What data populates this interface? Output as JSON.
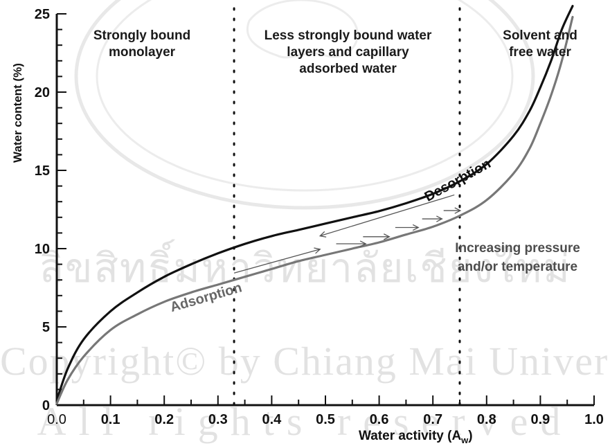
{
  "chart_data": {
    "type": "line",
    "title": "",
    "xlabel": "Water activity (A",
    "xlabel_sub": "w",
    "ylabel": "Water content (%)",
    "xlim": [
      0.0,
      1.0
    ],
    "ylim": [
      0,
      25
    ],
    "x_ticks": [
      "0.0",
      "0.1",
      "0.2",
      "0.3",
      "0.4",
      "0.5",
      "0.6",
      "0.7",
      "0.8",
      "0.9",
      "1.0"
    ],
    "y_ticks": [
      "0",
      "5",
      "10",
      "15",
      "20",
      "25"
    ],
    "region_boundaries": [
      0.33,
      0.75
    ],
    "regions": [
      {
        "label": "Strongly bound\nmonolayer"
      },
      {
        "label": "Less strongly bound water\nlayers and capillary\nadsorbed water"
      },
      {
        "label": "Solvent and\nfree water"
      }
    ],
    "series": [
      {
        "name": "Desorption",
        "color": "#111111",
        "x": [
          0.0,
          0.02,
          0.05,
          0.1,
          0.15,
          0.2,
          0.25,
          0.3,
          0.35,
          0.4,
          0.45,
          0.5,
          0.55,
          0.6,
          0.65,
          0.7,
          0.75,
          0.8,
          0.85,
          0.88,
          0.9,
          0.92,
          0.94,
          0.96
        ],
        "y": [
          0.3,
          2.3,
          4.2,
          6.0,
          7.2,
          8.2,
          9.0,
          9.7,
          10.3,
          10.8,
          11.2,
          11.6,
          12.0,
          12.4,
          12.9,
          13.5,
          14.3,
          15.4,
          17.2,
          18.8,
          20.3,
          22.0,
          24.0,
          25.5
        ]
      },
      {
        "name": "Adsorption",
        "color": "#777777",
        "x": [
          0.0,
          0.02,
          0.05,
          0.1,
          0.15,
          0.2,
          0.25,
          0.3,
          0.35,
          0.4,
          0.45,
          0.5,
          0.55,
          0.6,
          0.65,
          0.7,
          0.75,
          0.8,
          0.85,
          0.88,
          0.9,
          0.92,
          0.94,
          0.96
        ],
        "y": [
          0.1,
          1.6,
          3.1,
          4.8,
          5.8,
          6.6,
          7.2,
          7.7,
          8.2,
          8.7,
          9.2,
          9.6,
          10.0,
          10.4,
          10.9,
          11.4,
          12.1,
          13.1,
          14.8,
          16.4,
          18.0,
          19.8,
          22.0,
          24.8
        ]
      }
    ],
    "annotations": [
      {
        "text": "Desorption",
        "color": "#111111"
      },
      {
        "text": "Adsorption",
        "color": "#666666"
      },
      {
        "text": "Increasing pressure\nand/or temperature",
        "color": "#4d4d4d"
      }
    ]
  },
  "watermark": {
    "university": "CHIANG MAI UNIVERSITY",
    "thai": "ลิขสิทธิ์มหาวิทยาลัยเชียงใหม่",
    "copyright": "Copyright© by Chiang Mai University",
    "rights": "All rights reserved"
  }
}
